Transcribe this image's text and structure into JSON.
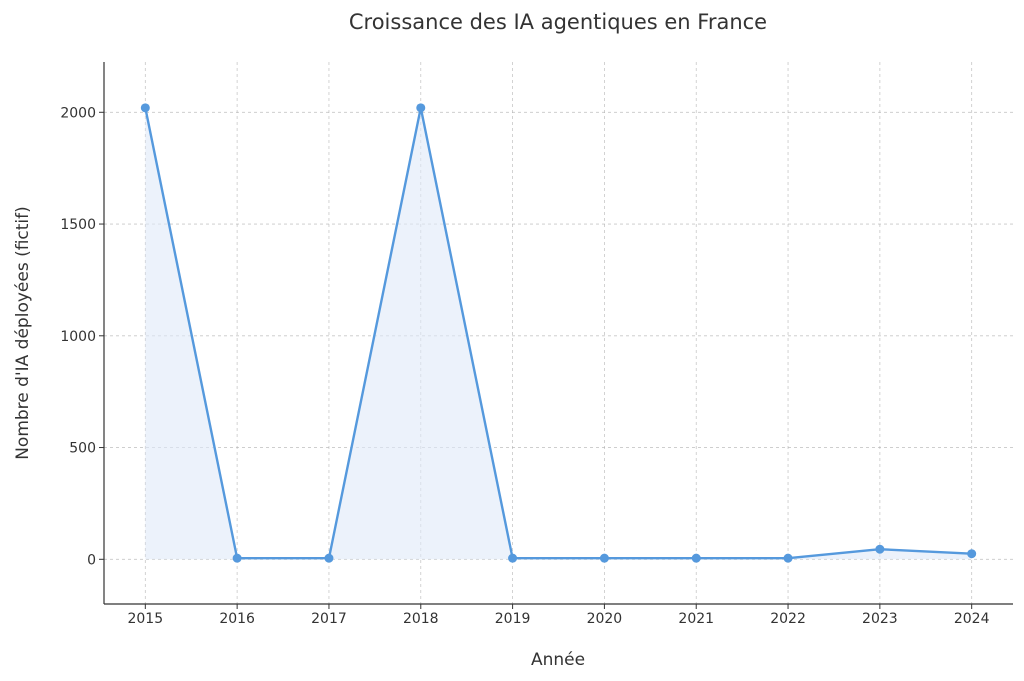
{
  "chart_data": {
    "type": "area",
    "title": "Croissance des IA agentiques en France",
    "xlabel": "Année",
    "ylabel": "Nombre d'IA déployées (fictif)",
    "x": [
      2015,
      2016,
      2017,
      2018,
      2019,
      2020,
      2021,
      2022,
      2023,
      2024
    ],
    "x_tick_labels": [
      "2015",
      "2016",
      "2017",
      "2018",
      "2019",
      "2020",
      "2021",
      "2022",
      "2023",
      "2024"
    ],
    "y_ticks": [
      0,
      500,
      1000,
      1500,
      2000
    ],
    "y_tick_labels": [
      "0",
      "500",
      "1000",
      "1500",
      "2000"
    ],
    "series": [
      {
        "values": [
          2020,
          5,
          5,
          2020,
          5,
          5,
          5,
          5,
          45,
          25
        ]
      }
    ],
    "xlim": [
      2014.55,
      2024.45
    ],
    "ylim": [
      -200,
      2225
    ],
    "grid": true,
    "colors": {
      "line": "#5599dd",
      "fill": "#dfeaf8"
    }
  }
}
